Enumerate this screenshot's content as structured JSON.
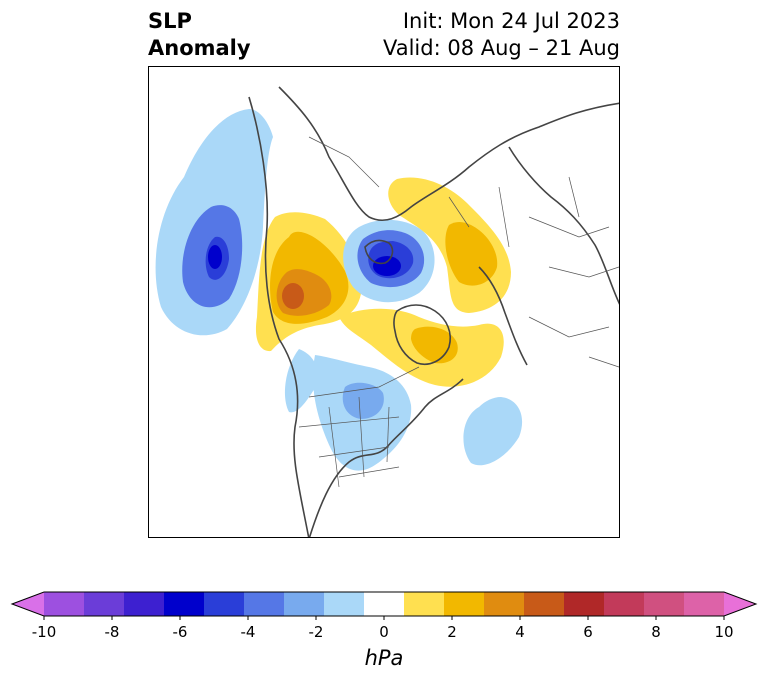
{
  "title": {
    "left_line1": "SLP",
    "left_line2": "Anomaly",
    "right_line1": "Init: Mon 24 Jul 2023",
    "right_line2": "Valid: 08 Aug – 21 Aug"
  },
  "colorbar": {
    "unit": "hPa",
    "ticks": [
      "-10",
      "-8",
      "-6",
      "-4",
      "-2",
      "0",
      "2",
      "4",
      "6",
      "8",
      "10"
    ],
    "levels": [
      -10,
      -9,
      -8,
      -7,
      -6,
      -5,
      -4,
      -3,
      -2,
      -1,
      1,
      2,
      3,
      4,
      5,
      6,
      7,
      8,
      9,
      10
    ],
    "colors": [
      "#d970e8",
      "#9d50e0",
      "#6b3dd8",
      "#3d20d0",
      "#0000cc",
      "#2a3ed8",
      "#5577e6",
      "#78aaee",
      "#aad8f8",
      "#ffffff",
      "#ffe050",
      "#f2b800",
      "#e08c10",
      "#c85a18",
      "#b02828",
      "#c23a5a",
      "#d05080",
      "#dd62a8",
      "#e870d8"
    ]
  },
  "map": {
    "projection": "north-polar-stereographic",
    "features": [
      "negative-anomaly-north-pacific",
      "positive-anomaly-alaska-beaufort",
      "negative-anomaly-arctic-siberia",
      "positive-anomaly-scandinavia-russia",
      "positive-anomaly-greenland",
      "negative-anomaly-central-north-america",
      "negative-anomaly-north-atlantic"
    ]
  }
}
